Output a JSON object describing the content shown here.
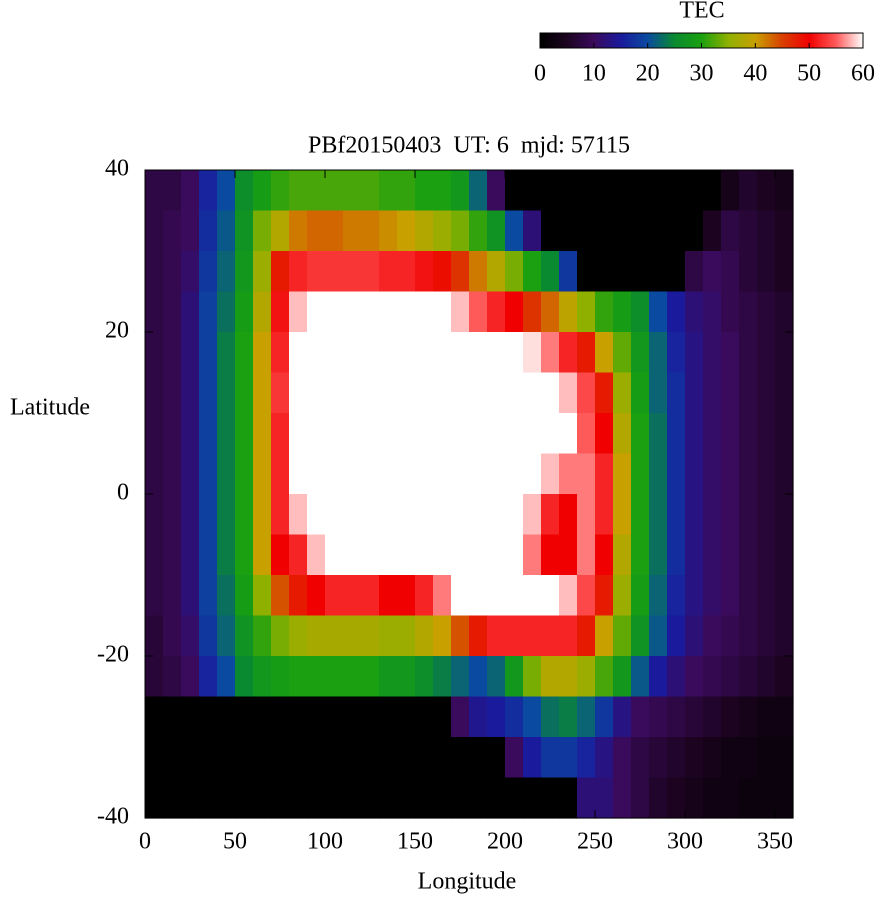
{
  "chart_data": {
    "type": "heatmap",
    "title": "PBf20150403  UT: 6  mjd: 57115",
    "x_label": "Longitude",
    "y_label": "Latitude",
    "colorbar_label": "TEC",
    "xlim": [
      0,
      360
    ],
    "ylim": [
      -40,
      40
    ],
    "xticks": [
      0,
      50,
      100,
      150,
      200,
      250,
      300,
      350
    ],
    "yticks": [
      -40,
      -20,
      0,
      20,
      40
    ],
    "cblim": [
      0,
      60
    ],
    "cbticks": [
      0,
      10,
      20,
      30,
      40,
      50,
      60
    ],
    "palette": [
      "#000000",
      "#1c0420",
      "#3a0a5c",
      "#1a1a9c",
      "#0a4aa0",
      "#0a8a30",
      "#1aa010",
      "#90b000",
      "#c8a000",
      "#d84000",
      "#f00000",
      "#ff5a5a",
      "#ffffff"
    ],
    "x": [
      5,
      15,
      25,
      35,
      45,
      55,
      65,
      75,
      85,
      95,
      105,
      115,
      125,
      135,
      145,
      155,
      165,
      175,
      185,
      195,
      205,
      215,
      225,
      235,
      245,
      255,
      265,
      275,
      285,
      295,
      305,
      315,
      325,
      335,
      345,
      355
    ],
    "y": [
      37.5,
      32.5,
      27.5,
      22.5,
      17.5,
      12.5,
      7.5,
      2.5,
      -2.5,
      -7.5,
      -12.5,
      -17.5,
      -22.5,
      -27.5,
      -32.5,
      -37.5
    ],
    "z": [
      [
        8,
        8,
        10,
        16,
        20,
        26,
        29,
        31,
        32,
        32,
        32,
        32,
        32,
        31,
        31,
        30,
        30,
        28,
        22,
        10,
        0,
        0,
        0,
        0,
        0,
        0,
        0,
        0,
        0,
        0,
        0,
        0,
        4,
        6,
        5,
        4
      ],
      [
        8,
        9,
        10,
        17,
        21,
        27,
        34,
        38,
        42,
        43,
        43,
        42,
        42,
        41,
        40,
        38,
        36,
        34,
        31,
        27,
        20,
        12,
        0,
        0,
        0,
        0,
        0,
        0,
        0,
        0,
        0,
        5,
        8,
        7,
        6,
        5
      ],
      [
        8,
        9,
        11,
        18,
        22,
        28,
        36,
        48,
        52,
        53,
        53,
        53,
        53,
        52,
        52,
        51,
        49,
        46,
        42,
        38,
        34,
        30,
        25,
        18,
        0,
        0,
        0,
        0,
        0,
        0,
        8,
        10,
        9,
        7,
        6,
        5
      ],
      [
        8,
        9,
        12,
        19,
        23,
        29,
        38,
        51,
        58,
        60,
        60,
        60,
        60,
        60,
        60,
        60,
        60,
        58,
        55,
        52,
        50,
        46,
        43,
        39,
        35,
        31,
        29,
        26,
        20,
        15,
        12,
        11,
        9,
        8,
        7,
        6
      ],
      [
        8,
        9,
        12,
        19,
        24,
        30,
        40,
        52,
        60,
        60,
        60,
        60,
        60,
        60,
        60,
        60,
        60,
        60,
        60,
        60,
        60,
        59,
        56,
        52,
        48,
        40,
        33,
        28,
        22,
        16,
        13,
        11,
        10,
        8,
        7,
        6
      ],
      [
        8,
        9,
        12,
        19,
        24,
        30,
        40,
        53,
        60,
        60,
        60,
        60,
        60,
        60,
        60,
        60,
        60,
        60,
        60,
        60,
        60,
        60,
        60,
        58,
        54,
        48,
        36,
        29,
        22,
        17,
        13,
        11,
        10,
        8,
        7,
        6
      ],
      [
        8,
        9,
        12,
        19,
        24,
        30,
        40,
        52,
        60,
        60,
        60,
        60,
        60,
        60,
        60,
        60,
        60,
        60,
        60,
        60,
        60,
        60,
        60,
        60,
        55,
        50,
        38,
        30,
        23,
        17,
        13,
        11,
        10,
        8,
        7,
        6
      ],
      [
        8,
        9,
        12,
        19,
        24,
        30,
        40,
        52,
        60,
        60,
        60,
        60,
        60,
        60,
        60,
        60,
        60,
        60,
        60,
        60,
        60,
        60,
        58,
        56,
        56,
        52,
        40,
        30,
        23,
        17,
        13,
        11,
        10,
        8,
        7,
        6
      ],
      [
        8,
        9,
        12,
        19,
        24,
        30,
        40,
        52,
        58,
        60,
        60,
        60,
        60,
        60,
        60,
        60,
        60,
        60,
        60,
        60,
        60,
        58,
        52,
        50,
        56,
        52,
        40,
        30,
        23,
        17,
        13,
        11,
        10,
        8,
        7,
        6
      ],
      [
        8,
        9,
        12,
        19,
        24,
        30,
        40,
        50,
        52,
        58,
        60,
        60,
        60,
        60,
        60,
        60,
        60,
        60,
        60,
        60,
        60,
        56,
        50,
        50,
        56,
        50,
        38,
        30,
        23,
        17,
        13,
        11,
        10,
        8,
        7,
        6
      ],
      [
        8,
        9,
        12,
        19,
        23,
        29,
        35,
        44,
        48,
        50,
        52,
        52,
        52,
        50,
        50,
        52,
        56,
        60,
        60,
        60,
        60,
        60,
        60,
        58,
        54,
        48,
        36,
        29,
        22,
        16,
        13,
        11,
        10,
        8,
        7,
        6
      ],
      [
        7,
        9,
        11,
        18,
        22,
        27,
        31,
        34,
        36,
        37,
        37,
        37,
        37,
        36,
        36,
        38,
        40,
        44,
        48,
        52,
        52,
        52,
        52,
        52,
        48,
        40,
        33,
        27,
        21,
        15,
        12,
        10,
        9,
        8,
        7,
        6
      ],
      [
        7,
        8,
        10,
        16,
        20,
        25,
        28,
        29,
        30,
        30,
        30,
        30,
        30,
        28,
        28,
        26,
        24,
        22,
        20,
        22,
        28,
        34,
        38,
        38,
        36,
        32,
        28,
        21,
        15,
        12,
        10,
        9,
        8,
        7,
        6,
        5
      ],
      [
        0,
        0,
        0,
        0,
        0,
        0,
        0,
        0,
        0,
        0,
        0,
        0,
        0,
        0,
        0,
        0,
        0,
        10,
        14,
        15,
        17,
        20,
        23,
        24,
        22,
        18,
        13,
        10,
        9,
        8,
        7,
        6,
        5,
        4,
        3,
        3
      ],
      [
        0,
        0,
        0,
        0,
        0,
        0,
        0,
        0,
        0,
        0,
        0,
        0,
        0,
        0,
        0,
        0,
        0,
        0,
        0,
        0,
        10,
        15,
        18,
        18,
        16,
        13,
        10,
        8,
        7,
        6,
        5,
        4,
        3,
        3,
        2,
        2
      ],
      [
        0,
        0,
        0,
        0,
        0,
        0,
        0,
        0,
        0,
        0,
        0,
        0,
        0,
        0,
        0,
        0,
        0,
        0,
        0,
        0,
        0,
        0,
        0,
        0,
        12,
        12,
        10,
        8,
        6,
        5,
        4,
        3,
        3,
        2,
        2,
        2
      ]
    ]
  }
}
